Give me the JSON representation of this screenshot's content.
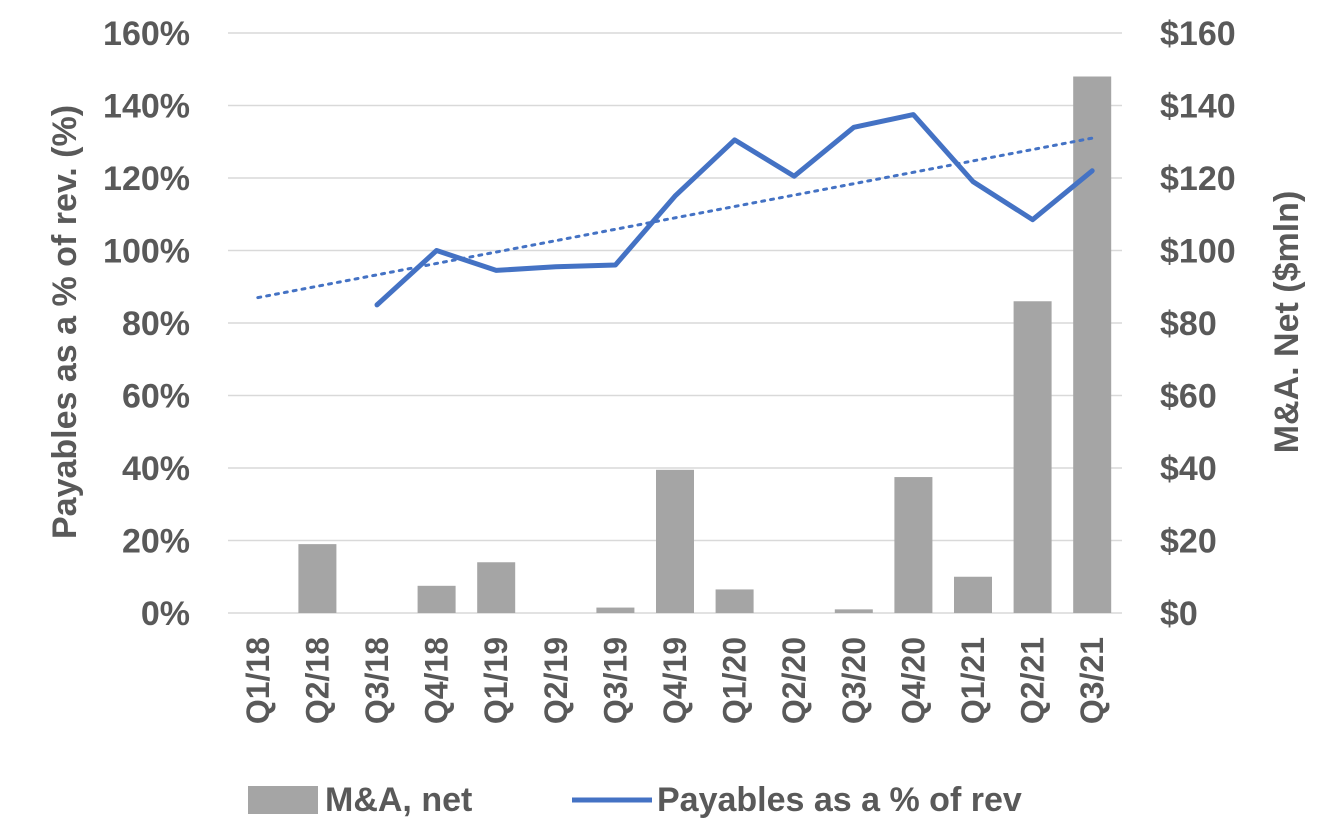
{
  "chart_data": {
    "type": "bar",
    "categories": [
      "Q1/18",
      "Q2/18",
      "Q3/18",
      "Q4/18",
      "Q1/19",
      "Q2/19",
      "Q3/19",
      "Q4/19",
      "Q1/20",
      "Q2/20",
      "Q3/20",
      "Q4/20",
      "Q1/21",
      "Q2/21",
      "Q3/21"
    ],
    "series": [
      {
        "name": "M&A, net",
        "type": "bar",
        "axis": "right",
        "values": [
          0,
          19,
          0,
          7.5,
          14,
          0,
          1.5,
          39.5,
          6.5,
          0,
          1,
          37.5,
          10,
          86,
          148
        ]
      },
      {
        "name": "Payables as a % of rev",
        "type": "line",
        "axis": "left",
        "values": [
          null,
          null,
          85,
          100,
          94.5,
          95.5,
          96,
          115,
          130.5,
          120.5,
          134,
          137.5,
          119,
          108.5,
          122
        ]
      }
    ],
    "trendline": {
      "series": "Payables as a % of rev",
      "style": "dotted",
      "start": {
        "x": "Q1/18",
        "y": 87
      },
      "end": {
        "x": "Q3/21",
        "y": 131
      }
    },
    "ylabel_left": "Payables as a % of rev. (%)",
    "ylabel_right": "M&A. Net ($mln)",
    "ylim_left": [
      0,
      160
    ],
    "ylim_right": [
      0,
      160
    ],
    "yticks_left": [
      "0%",
      "20%",
      "40%",
      "60%",
      "80%",
      "100%",
      "120%",
      "140%",
      "160%"
    ],
    "yticks_right": [
      "$0",
      "$20",
      "$40",
      "$60",
      "$80",
      "$100",
      "$120",
      "$140",
      "$160"
    ],
    "grid": true,
    "legend_position": "bottom",
    "colors": {
      "bar": "#a5a5a5",
      "line": "#4472c4",
      "trend": "#4472c4",
      "grid": "#d9d9d9",
      "text": "#595959"
    }
  }
}
